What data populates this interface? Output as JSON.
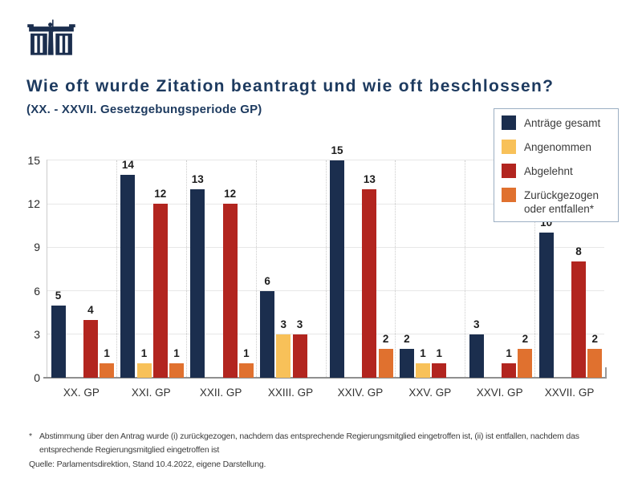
{
  "header": {
    "logo": "parliament-building-logo",
    "title": "Wie oft wurde Zitation beantragt und wie oft beschlossen?",
    "subtitle": "(XX. - XXVII. Gesetzgebungsperiode GP)"
  },
  "colors": {
    "navy": "#1b2e4e",
    "yellow": "#f8c159",
    "red": "#b2251f",
    "orange": "#e0712f",
    "title_navy": "#1d3a5f",
    "legend_border": "#9cafc3",
    "grid": "#e7e7e7",
    "baseline": "#8f8f8f"
  },
  "legend": {
    "items": [
      {
        "label": "Anträge gesamt",
        "color_key": "navy"
      },
      {
        "label": "Angenommen",
        "color_key": "yellow"
      },
      {
        "label": "Abgelehnt",
        "color_key": "red"
      },
      {
        "label": "Zurückgezogen oder entfallen*",
        "color_key": "orange"
      }
    ]
  },
  "chart_data": {
    "type": "bar",
    "title": "Wie oft wurde Zitation beantragt und wie oft beschlossen?",
    "subtitle": "(XX. - XXVII. Gesetzgebungsperiode GP)",
    "categories": [
      "XX. GP",
      "XXI. GP",
      "XXII. GP",
      "XXIII. GP",
      "XXIV. GP",
      "XXV. GP",
      "XXVI. GP",
      "XXVII. GP"
    ],
    "series": [
      {
        "name": "Anträge gesamt",
        "color_key": "navy",
        "values": [
          5,
          14,
          13,
          6,
          15,
          2,
          3,
          10
        ]
      },
      {
        "name": "Angenommen",
        "color_key": "yellow",
        "values": [
          null,
          1,
          null,
          3,
          null,
          1,
          null,
          null
        ]
      },
      {
        "name": "Abgelehnt",
        "color_key": "red",
        "values": [
          4,
          12,
          12,
          3,
          13,
          1,
          1,
          8
        ]
      },
      {
        "name": "Zurückgezogen oder entfallen",
        "color_key": "orange",
        "values": [
          1,
          1,
          1,
          null,
          2,
          null,
          2,
          2
        ]
      }
    ],
    "xlabel": "",
    "ylabel": "",
    "ylim": [
      0,
      15
    ],
    "yticks": [
      0,
      3,
      6,
      9,
      12,
      15
    ],
    "grid": true,
    "legend_position": "top-right"
  },
  "footnotes": {
    "asterisk": "*",
    "line1": "Abstimmung über den Antrag wurde (i) zurückgezogen, nachdem das entsprechende Regierungsmitglied eingetroffen ist, (ii) ist entfallen, nachdem das",
    "line2": "entsprechende Regierungsmitglied eingetroffen ist",
    "source": "Quelle: Parlamentsdirektion, Stand 10.4.2022, eigene Darstellung."
  }
}
